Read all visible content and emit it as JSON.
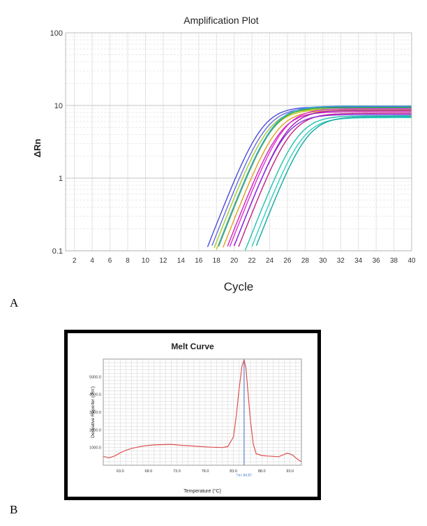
{
  "chart_data": [
    {
      "type": "line",
      "title": "Amplification Plot",
      "xlabel": "Cycle",
      "ylabel": "ΔRn",
      "yscale": "log",
      "xlim": [
        1,
        40
      ],
      "ylim": [
        0.1,
        100
      ],
      "x_ticks": [
        2,
        4,
        6,
        8,
        10,
        12,
        14,
        16,
        18,
        20,
        22,
        24,
        26,
        28,
        30,
        32,
        34,
        36,
        38,
        40
      ],
      "y_ticks": [
        {
          "value": 0.1,
          "label": "0.1"
        },
        {
          "value": 1,
          "label": "1"
        },
        {
          "value": 10,
          "label": "10"
        },
        {
          "value": 100,
          "label": "100"
        }
      ],
      "grid": true,
      "series": [
        {
          "color": "#4b4bd8",
          "ct": 19.8,
          "plateau": 9.6
        },
        {
          "color": "#6a6ae0",
          "ct": 20.2,
          "plateau": 9.3
        },
        {
          "color": "#9acd32",
          "ct": 20.5,
          "plateau": 9.0
        },
        {
          "color": "#c8c820",
          "ct": 20.8,
          "plateau": 8.8
        },
        {
          "color": "#33b040",
          "ct": 21.0,
          "plateau": 9.4
        },
        {
          "color": "#e0a020",
          "ct": 21.4,
          "plateau": 8.5
        },
        {
          "color": "#3aa0e0",
          "ct": 21.0,
          "plateau": 9.8
        },
        {
          "color": "#d020c0",
          "ct": 21.8,
          "plateau": 8.2
        },
        {
          "color": "#e030d0",
          "ct": 22.2,
          "plateau": 9.0
        },
        {
          "color": "#a020b0",
          "ct": 22.6,
          "plateau": 8.6
        },
        {
          "color": "#c02080",
          "ct": 23.0,
          "plateau": 7.8
        },
        {
          "color": "#8a2be2",
          "ct": 22.4,
          "plateau": 7.5
        },
        {
          "color": "#20c0b0",
          "ct": 23.8,
          "plateau": 7.2
        },
        {
          "color": "#30d0c0",
          "ct": 24.3,
          "plateau": 6.8
        },
        {
          "color": "#10a8a0",
          "ct": 24.8,
          "plateau": 7.0
        }
      ]
    },
    {
      "type": "line",
      "title": "Melt Curve",
      "xlabel": "Temperature (°C)",
      "ylabel": "Derivative Reporter (-Rn')",
      "xlim": [
        60,
        95
      ],
      "ylim": [
        0,
        6000
      ],
      "x_ticks": [
        {
          "value": 63,
          "label": "63.0"
        },
        {
          "value": 68,
          "label": "68.0"
        },
        {
          "value": 73,
          "label": "73.0"
        },
        {
          "value": 78,
          "label": "78.0"
        },
        {
          "value": 83,
          "label": "83.0"
        },
        {
          "value": 88,
          "label": "88.0"
        },
        {
          "value": 93,
          "label": "93.0"
        }
      ],
      "y_ticks": [
        {
          "value": 1000,
          "label": "1000.0"
        },
        {
          "value": 2000,
          "label": "2000.0"
        },
        {
          "value": 3000,
          "label": "3000.0"
        },
        {
          "value": 4000,
          "label": "4000.0"
        },
        {
          "value": 5000,
          "label": "5000.0"
        }
      ],
      "grid": true,
      "tm_label": "Tm: 84.87",
      "tm_value": 84.87,
      "line_color": "#e05050",
      "tm_color": "#4a7fd0",
      "x": [
        60,
        61,
        62,
        63,
        64,
        65,
        66,
        67,
        68,
        69,
        70,
        71,
        72,
        73,
        74,
        75,
        76,
        77,
        78,
        79,
        80,
        81,
        82,
        83,
        83.5,
        84,
        84.5,
        84.87,
        85.2,
        85.6,
        86,
        86.5,
        87,
        88,
        89,
        90,
        91,
        92,
        92.5,
        93,
        93.5,
        94,
        94.5,
        95
      ],
      "values": [
        500,
        420,
        520,
        700,
        850,
        950,
        1020,
        1080,
        1120,
        1150,
        1160,
        1170,
        1180,
        1150,
        1120,
        1100,
        1080,
        1060,
        1040,
        1020,
        1010,
        1000,
        1050,
        1600,
        2800,
        4300,
        5600,
        5950,
        5500,
        4000,
        2500,
        1200,
        650,
        550,
        520,
        500,
        480,
        620,
        680,
        640,
        560,
        420,
        300,
        200
      ]
    }
  ],
  "panel_labels": {
    "a": "A",
    "b": "B"
  }
}
